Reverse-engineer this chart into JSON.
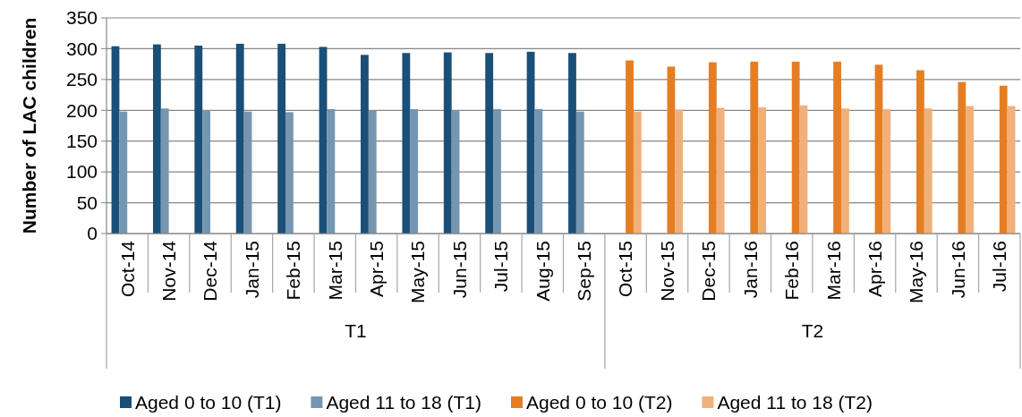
{
  "chart_data": {
    "type": "bar",
    "ylabel": "Number of LAC children",
    "categories": [
      "Oct-14",
      "Nov-14",
      "Dec-14",
      "Jan-15",
      "Feb-15",
      "Mar-15",
      "Apr-15",
      "May-15",
      "Jun-15",
      "Jul-15",
      "Aug-15",
      "Sep-15",
      "Oct-15",
      "Nov-15",
      "Dec-15",
      "Jan-16",
      "Feb-16",
      "Mar-16",
      "Apr-16",
      "May-16",
      "Jun-16",
      "Jul-16"
    ],
    "series": [
      {
        "name": "Aged 0 to 10 (T1)",
        "color": "#1a4f77",
        "values": [
          304,
          307,
          305,
          308,
          308,
          303,
          290,
          293,
          294,
          293,
          295,
          293,
          null,
          null,
          null,
          null,
          null,
          null,
          null,
          null,
          null,
          null
        ]
      },
      {
        "name": "Aged 11 to 18 (T1)",
        "color": "#7596b0",
        "values": [
          198,
          203,
          200,
          198,
          197,
          202,
          200,
          202,
          200,
          202,
          202,
          198,
          null,
          null,
          null,
          null,
          null,
          null,
          null,
          null,
          null,
          null
        ]
      },
      {
        "name": "Aged 0 to 10 (T2)",
        "color": "#e57e23",
        "values": [
          null,
          null,
          null,
          null,
          null,
          null,
          null,
          null,
          null,
          null,
          null,
          null,
          281,
          271,
          278,
          279,
          279,
          279,
          274,
          265,
          246,
          240
        ]
      },
      {
        "name": "Aged 11 to 18 (T2)",
        "color": "#f1b07a",
        "values": [
          null,
          null,
          null,
          null,
          null,
          null,
          null,
          null,
          null,
          null,
          null,
          null,
          198,
          201,
          204,
          205,
          208,
          203,
          202,
          203,
          207,
          207
        ]
      }
    ],
    "annotations": [
      "T1",
      "T2"
    ],
    "ylim": [
      0,
      350
    ],
    "yticks": [
      0,
      50,
      100,
      150,
      200,
      250,
      300,
      350
    ],
    "grid": "y",
    "legend": "bottom"
  }
}
